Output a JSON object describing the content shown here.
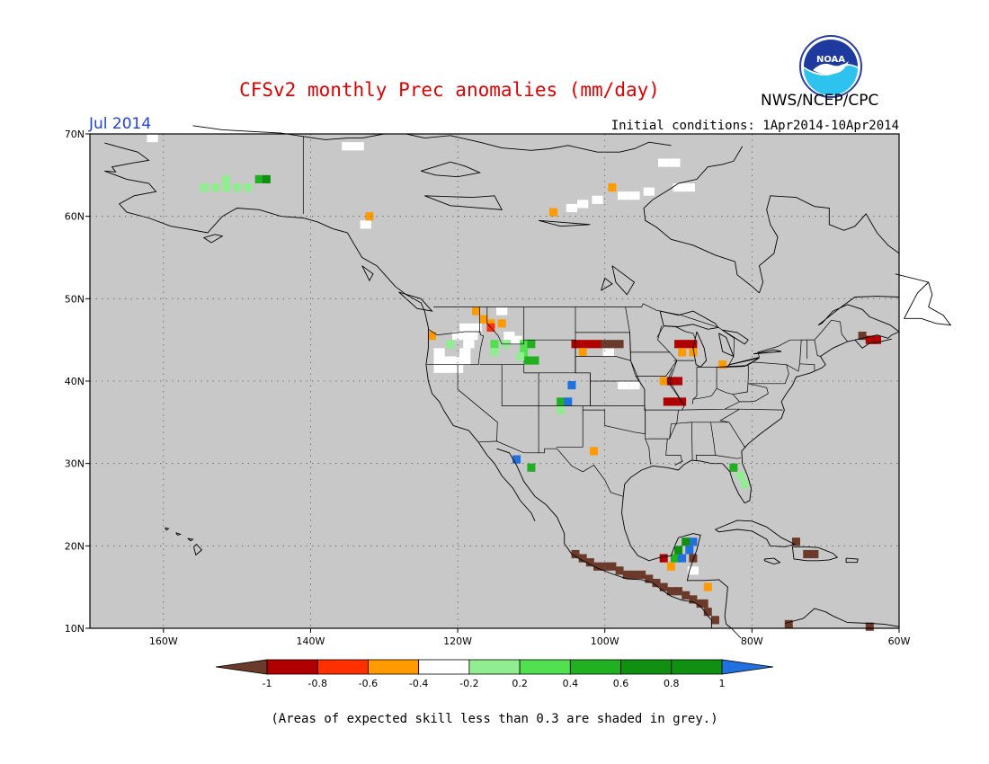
{
  "title": "CFSv2 monthly Prec anomalies (mm/day)",
  "agency": "NWS/NCEP/CPC",
  "logo_text": "NOAA",
  "period": "Jul 2014",
  "initial_conditions": "Initial conditions: 1Apr2014-10Apr2014",
  "footnote": "(Areas of expected skill less than 0.3 are shaded in grey.)",
  "map": {
    "background_color": "#c8c8c8",
    "lon_range": [
      -170,
      -60
    ],
    "lat_range": [
      10,
      70
    ],
    "grid": "dotted",
    "lat_labels": [
      "70N",
      "60N",
      "50N",
      "40N",
      "30N",
      "20N",
      "10N"
    ],
    "lon_labels": [
      "160W",
      "140W",
      "120W",
      "100W",
      "80W",
      "60W"
    ]
  },
  "colorbar": {
    "labels": [
      "-1",
      "-0.8",
      "-0.6",
      "-0.4",
      "-0.2",
      "0.2",
      "0.4",
      "0.6",
      "0.8",
      "1"
    ],
    "colors": [
      "#6b3a2a",
      "#b00000",
      "#ff3000",
      "#ff9a00",
      "#ffffff",
      "#90ee90",
      "#50e050",
      "#20b020",
      "#109010",
      "#2070e0"
    ]
  },
  "anomaly_cells": [
    {
      "lon": -148.5,
      "lat": 63.5,
      "value": 0.3
    },
    {
      "lon": -150,
      "lat": 63.5,
      "value": 0.3
    },
    {
      "lon": -151.5,
      "lat": 63.5,
      "value": 0.3
    },
    {
      "lon": -153,
      "lat": 63.5,
      "value": 0.3
    },
    {
      "lon": -154.5,
      "lat": 63.5,
      "value": 0.3
    },
    {
      "lon": -151.5,
      "lat": 64.5,
      "value": 0.3
    },
    {
      "lon": -147,
      "lat": 64.5,
      "value": 0.6
    },
    {
      "lon": -146,
      "lat": 64.5,
      "value": 0.8
    },
    {
      "lon": -132,
      "lat": 60,
      "value": -0.3
    },
    {
      "lon": -107,
      "lat": 60.5,
      "value": -0.3
    },
    {
      "lon": -99,
      "lat": 63.5,
      "value": -0.3
    },
    {
      "lon": -123.5,
      "lat": 45.5,
      "value": -0.3
    },
    {
      "lon": -121,
      "lat": 44.5,
      "value": 0.3
    },
    {
      "lon": -117.5,
      "lat": 48.5,
      "value": -0.3
    },
    {
      "lon": -116.5,
      "lat": 47.5,
      "value": -0.3
    },
    {
      "lon": -115.5,
      "lat": 47,
      "value": -0.3
    },
    {
      "lon": -115.5,
      "lat": 46.5,
      "value": -0.5
    },
    {
      "lon": -114,
      "lat": 47,
      "value": -0.3
    },
    {
      "lon": -115,
      "lat": 44.5,
      "value": 0.5
    },
    {
      "lon": -115,
      "lat": 43.5,
      "value": 0.3
    },
    {
      "lon": -113.5,
      "lat": 44.5,
      "value": 0.3
    },
    {
      "lon": -111,
      "lat": 44.5,
      "value": 0.5
    },
    {
      "lon": -110,
      "lat": 44.5,
      "value": 0.7
    },
    {
      "lon": -111,
      "lat": 43.5,
      "value": 0.5
    },
    {
      "lon": -110.5,
      "lat": 42.5,
      "value": 0.7
    },
    {
      "lon": -109.5,
      "lat": 42.5,
      "value": 0.7
    },
    {
      "lon": -111.5,
      "lat": 43,
      "value": 0.3
    },
    {
      "lon": -104.5,
      "lat": 39.5,
      "value": 1.0
    },
    {
      "lon": -106,
      "lat": 37.5,
      "value": 0.7
    },
    {
      "lon": -105,
      "lat": 37.5,
      "value": 1.0
    },
    {
      "lon": -106,
      "lat": 36.5,
      "value": 0.3
    },
    {
      "lon": -112,
      "lat": 30.5,
      "value": 1.0
    },
    {
      "lon": -110,
      "lat": 29.5,
      "value": 0.7
    },
    {
      "lon": -101.5,
      "lat": 31.5,
      "value": -0.3
    },
    {
      "lon": -104,
      "lat": 44.5,
      "value": -0.6
    },
    {
      "lon": -103,
      "lat": 44.5,
      "value": -0.6
    },
    {
      "lon": -102,
      "lat": 44.5,
      "value": -0.6
    },
    {
      "lon": -101,
      "lat": 44.5,
      "value": -0.6
    },
    {
      "lon": -100,
      "lat": 44.5,
      "value": -0.8
    },
    {
      "lon": -99,
      "lat": 44.5,
      "value": -0.8
    },
    {
      "lon": -98,
      "lat": 44.5,
      "value": -0.8
    },
    {
      "lon": -103,
      "lat": 43.5,
      "value": -0.3
    },
    {
      "lon": -90,
      "lat": 44.5,
      "value": -0.6
    },
    {
      "lon": -89,
      "lat": 44.5,
      "value": -0.6
    },
    {
      "lon": -88,
      "lat": 44.5,
      "value": -0.6
    },
    {
      "lon": -89.5,
      "lat": 43.5,
      "value": -0.3
    },
    {
      "lon": -88,
      "lat": 43.5,
      "value": -0.3
    },
    {
      "lon": -84,
      "lat": 42,
      "value": -0.3
    },
    {
      "lon": -92,
      "lat": 40,
      "value": -0.3
    },
    {
      "lon": -91,
      "lat": 40,
      "value": -0.6
    },
    {
      "lon": -90,
      "lat": 40,
      "value": -0.6
    },
    {
      "lon": -91.5,
      "lat": 37.5,
      "value": -0.6
    },
    {
      "lon": -90.5,
      "lat": 37.5,
      "value": -0.6
    },
    {
      "lon": -89.5,
      "lat": 37.5,
      "value": -0.6
    },
    {
      "lon": -65,
      "lat": 45.5,
      "value": -0.9
    },
    {
      "lon": -64,
      "lat": 45,
      "value": -0.6
    },
    {
      "lon": -63,
      "lat": 45,
      "value": -0.6
    },
    {
      "lon": -82.5,
      "lat": 29.5,
      "value": 0.7
    },
    {
      "lon": -81.5,
      "lat": 28.5,
      "value": 0.3
    },
    {
      "lon": -81,
      "lat": 27.5,
      "value": 0.3
    },
    {
      "lon": -104,
      "lat": 19,
      "value": -1.0
    },
    {
      "lon": -103,
      "lat": 18.5,
      "value": -1.0
    },
    {
      "lon": -102,
      "lat": 18,
      "value": -1.0
    },
    {
      "lon": -101,
      "lat": 17.5,
      "value": -1.0
    },
    {
      "lon": -100,
      "lat": 17.5,
      "value": -1.0
    },
    {
      "lon": -99,
      "lat": 17.5,
      "value": -1.0
    },
    {
      "lon": -98,
      "lat": 17,
      "value": -1.0
    },
    {
      "lon": -97,
      "lat": 16.5,
      "value": -1.0
    },
    {
      "lon": -96,
      "lat": 16.5,
      "value": -1.0
    },
    {
      "lon": -95,
      "lat": 16.5,
      "value": -1.0
    },
    {
      "lon": -94,
      "lat": 16,
      "value": -1.0
    },
    {
      "lon": -93,
      "lat": 15.5,
      "value": -1.0
    },
    {
      "lon": -92,
      "lat": 15,
      "value": -1.0
    },
    {
      "lon": -91,
      "lat": 14.5,
      "value": -1.0
    },
    {
      "lon": -90,
      "lat": 14.5,
      "value": -1.0
    },
    {
      "lon": -89,
      "lat": 14,
      "value": -1.0
    },
    {
      "lon": -88,
      "lat": 13.5,
      "value": -1.0
    },
    {
      "lon": -87,
      "lat": 13,
      "value": -1.0
    },
    {
      "lon": -86,
      "lat": 12,
      "value": -1.0
    },
    {
      "lon": -85,
      "lat": 11,
      "value": -1.0
    },
    {
      "lon": -88.5,
      "lat": 19.5,
      "value": 1.0
    },
    {
      "lon": -88,
      "lat": 20.5,
      "value": 1.0
    },
    {
      "lon": -89,
      "lat": 20.5,
      "value": 0.8
    },
    {
      "lon": -90,
      "lat": 19.5,
      "value": 0.8
    },
    {
      "lon": -90.5,
      "lat": 18.5,
      "value": 0.6
    },
    {
      "lon": -89.5,
      "lat": 18.5,
      "value": 1.0
    },
    {
      "lon": -88,
      "lat": 18.5,
      "value": -0.9
    },
    {
      "lon": -91,
      "lat": 17.5,
      "value": -0.3
    },
    {
      "lon": -92,
      "lat": 18.5,
      "value": -0.6
    },
    {
      "lon": -86,
      "lat": 15,
      "value": -0.3
    },
    {
      "lon": -86.5,
      "lat": 13,
      "value": -0.9
    },
    {
      "lon": -71.5,
      "lat": 19,
      "value": -0.8
    },
    {
      "lon": -72.5,
      "lat": 19,
      "value": -0.8
    },
    {
      "lon": -74,
      "lat": 20.5,
      "value": -1.0
    },
    {
      "lon": -75,
      "lat": 10.5,
      "value": -1.0
    },
    {
      "lon": -64,
      "lat": 10.2,
      "value": -0.8
    }
  ],
  "white_cells": [
    {
      "lon": -161.5,
      "lat": 69.5
    },
    {
      "lon": -135,
      "lat": 68.5
    },
    {
      "lon": -133.5,
      "lat": 68.5
    },
    {
      "lon": -132.5,
      "lat": 59
    },
    {
      "lon": -104.5,
      "lat": 61
    },
    {
      "lon": -103,
      "lat": 61.5
    },
    {
      "lon": -101,
      "lat": 62
    },
    {
      "lon": -97.5,
      "lat": 62.5
    },
    {
      "lon": -96,
      "lat": 62.5
    },
    {
      "lon": -94,
      "lat": 63
    },
    {
      "lon": -90,
      "lat": 63.5
    },
    {
      "lon": -88.5,
      "lat": 63.5
    },
    {
      "lon": -92,
      "lat": 66.5
    },
    {
      "lon": -90.5,
      "lat": 66.5
    },
    {
      "lon": -122.5,
      "lat": 41.5
    },
    {
      "lon": -122.5,
      "lat": 42.5
    },
    {
      "lon": -122.5,
      "lat": 43.5
    },
    {
      "lon": -121.5,
      "lat": 41.5
    },
    {
      "lon": -121.5,
      "lat": 42.5
    },
    {
      "lon": -120,
      "lat": 41.5
    },
    {
      "lon": -120,
      "lat": 42.5
    },
    {
      "lon": -119,
      "lat": 42.5
    },
    {
      "lon": -119,
      "lat": 43.5
    },
    {
      "lon": -120,
      "lat": 45.5
    },
    {
      "lon": -119,
      "lat": 46.5
    },
    {
      "lon": -119.5,
      "lat": 45.5
    },
    {
      "lon": -118.5,
      "lat": 44.5
    },
    {
      "lon": -118,
      "lat": 45.5
    },
    {
      "lon": -117.5,
      "lat": 46.5
    },
    {
      "lon": -114,
      "lat": 48.5
    },
    {
      "lon": -113,
      "lat": 45.5
    },
    {
      "lon": -112,
      "lat": 45
    },
    {
      "lon": -97.5,
      "lat": 39.5
    },
    {
      "lon": -96,
      "lat": 39.5
    },
    {
      "lon": -99.5,
      "lat": 43.5
    },
    {
      "lon": -88,
      "lat": 17
    }
  ],
  "states": [
    "WA",
    "OR",
    "CA",
    "NV",
    "ID",
    "MT",
    "WY",
    "UT",
    "AZ",
    "CO",
    "NM",
    "ND",
    "SD",
    "NE",
    "KS",
    "OK",
    "TX",
    "MN",
    "IA",
    "MO",
    "AR",
    "LA",
    "WI",
    "IL",
    "MS",
    "MI",
    "IN",
    "KY",
    "TN",
    "AL",
    "OH",
    "GA",
    "FL",
    "SC",
    "NC",
    "VA",
    "WV",
    "PA",
    "NY"
  ]
}
